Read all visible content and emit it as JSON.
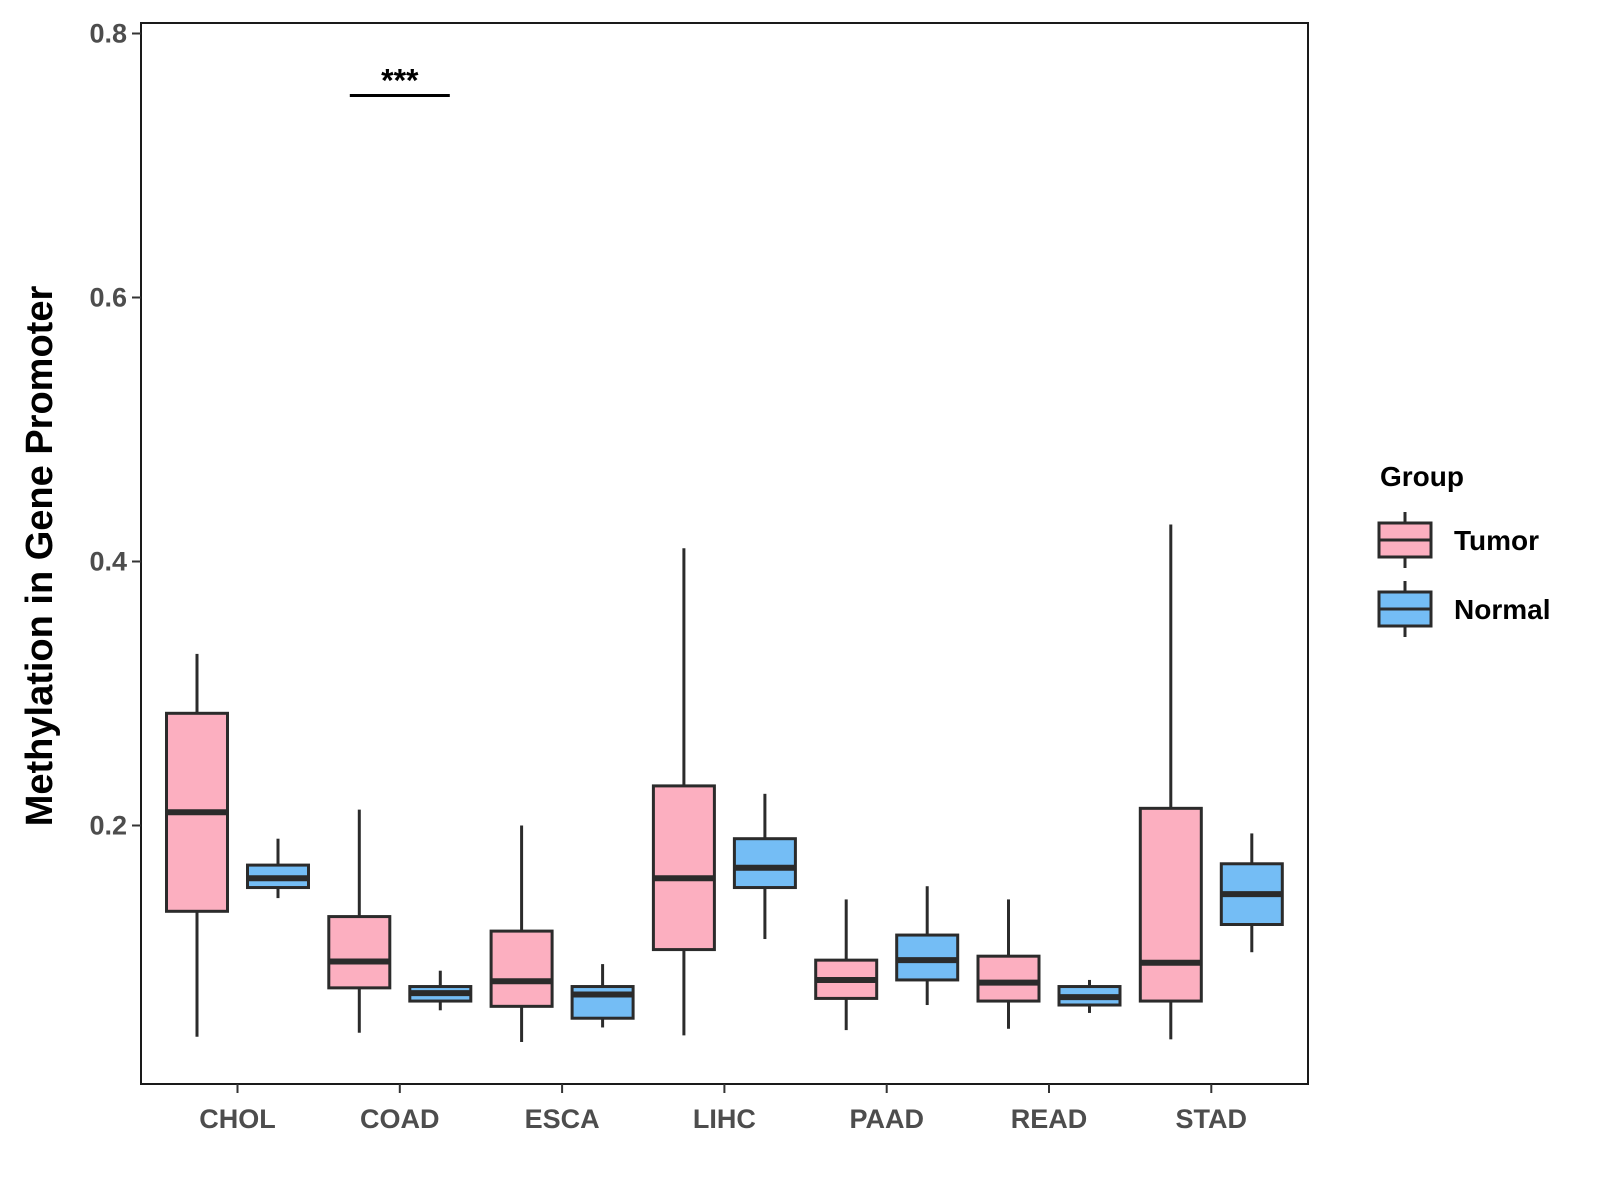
{
  "chart_data": {
    "type": "boxplot",
    "title": "",
    "xlabel": "",
    "ylabel": "Methylation in Gene Promoter",
    "ylim": [
      0.0,
      0.8
    ],
    "yticks": [
      0.2,
      0.4,
      0.6,
      0.8
    ],
    "ytick_labels": [
      "0.2",
      "0.4",
      "0.6",
      "0.8"
    ],
    "categories": [
      "CHOL",
      "COAD",
      "ESCA",
      "LIHC",
      "PAAD",
      "READ",
      "STAD"
    ],
    "grid": false,
    "legend": {
      "title": "Group",
      "position": "right",
      "entries": [
        {
          "name": "Tumor",
          "color": "#FCAFC0"
        },
        {
          "name": "Normal",
          "color": "#74BDF5"
        }
      ]
    },
    "series": [
      {
        "name": "Tumor",
        "color": "#FCAFC0",
        "boxes": [
          {
            "category": "CHOL",
            "min": 0.04,
            "q1": 0.135,
            "median": 0.21,
            "q3": 0.285,
            "max": 0.33
          },
          {
            "category": "COAD",
            "min": 0.043,
            "q1": 0.077,
            "median": 0.097,
            "q3": 0.131,
            "max": 0.212
          },
          {
            "category": "ESCA",
            "min": 0.036,
            "q1": 0.063,
            "median": 0.082,
            "q3": 0.12,
            "max": 0.2
          },
          {
            "category": "LIHC",
            "min": 0.041,
            "q1": 0.106,
            "median": 0.16,
            "q3": 0.23,
            "max": 0.41
          },
          {
            "category": "PAAD",
            "min": 0.045,
            "q1": 0.069,
            "median": 0.083,
            "q3": 0.098,
            "max": 0.144
          },
          {
            "category": "READ",
            "min": 0.046,
            "q1": 0.067,
            "median": 0.081,
            "q3": 0.101,
            "max": 0.144
          },
          {
            "category": "STAD",
            "min": 0.038,
            "q1": 0.067,
            "median": 0.096,
            "q3": 0.213,
            "max": 0.428
          }
        ]
      },
      {
        "name": "Normal",
        "color": "#74BDF5",
        "boxes": [
          {
            "category": "CHOL",
            "min": 0.145,
            "q1": 0.153,
            "median": 0.16,
            "q3": 0.17,
            "max": 0.19
          },
          {
            "category": "COAD",
            "min": 0.06,
            "q1": 0.067,
            "median": 0.073,
            "q3": 0.078,
            "max": 0.09
          },
          {
            "category": "ESCA",
            "min": 0.047,
            "q1": 0.054,
            "median": 0.072,
            "q3": 0.078,
            "max": 0.095
          },
          {
            "category": "LIHC",
            "min": 0.114,
            "q1": 0.153,
            "median": 0.168,
            "q3": 0.19,
            "max": 0.224
          },
          {
            "category": "PAAD",
            "min": 0.064,
            "q1": 0.083,
            "median": 0.098,
            "q3": 0.117,
            "max": 0.154
          },
          {
            "category": "READ",
            "min": 0.058,
            "q1": 0.064,
            "median": 0.07,
            "q3": 0.078,
            "max": 0.083
          },
          {
            "category": "STAD",
            "min": 0.104,
            "q1": 0.125,
            "median": 0.148,
            "q3": 0.171,
            "max": 0.194
          }
        ]
      }
    ],
    "annotations": [
      {
        "category": "COAD",
        "text": "***",
        "y": 0.753
      }
    ]
  }
}
